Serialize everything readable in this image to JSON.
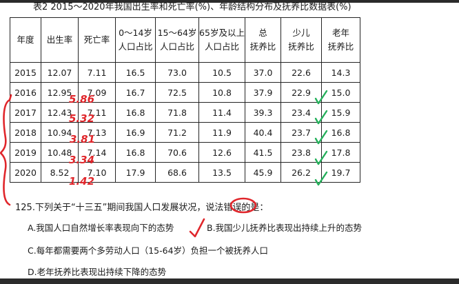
{
  "title": "表2 2015～2020年我国出生率和死亡率(%)、年龄结构分布及抚养比数据表(%)",
  "table": {
    "headers": [
      [
        "年度"
      ],
      [
        "出生率"
      ],
      [
        "死亡率"
      ],
      [
        "0～14岁",
        "人口占比"
      ],
      [
        "15～64岁",
        "人口占比"
      ],
      [
        "65岁及以上",
        "人口占比"
      ],
      [
        "总",
        "抚养比"
      ],
      [
        "少儿",
        "抚养比"
      ],
      [
        "老年",
        "抚养比"
      ]
    ],
    "rows": [
      [
        "2015",
        "12.07",
        "7.11",
        "16.5",
        "73.0",
        "10.5",
        "37.0",
        "22.6",
        "14.3"
      ],
      [
        "2016",
        "12.95",
        "7.09",
        "16.7",
        "72.5",
        "10.8",
        "37.9",
        "22.9",
        "15.0"
      ],
      [
        "2017",
        "12.43",
        "7.11",
        "16.8",
        "71.8",
        "11.4",
        "39.3",
        "23.4",
        "15.9"
      ],
      [
        "2018",
        "10.94",
        "7.13",
        "16.9",
        "71.2",
        "11.9",
        "40.4",
        "23.7",
        "16.8"
      ],
      [
        "2019",
        "10.48",
        "7.14",
        "16.8",
        "70.6",
        "12.6",
        "41.5",
        "23.8",
        "17.8"
      ],
      [
        "2020",
        "8.52",
        "7.10",
        "17.9",
        "68.6",
        "13.5",
        "45.9",
        "26.2",
        "19.7"
      ]
    ]
  },
  "handwritten_annotations": [
    "5.86",
    "5.32",
    "3.81",
    "3.34",
    "1.42"
  ],
  "question": {
    "stem": "125.下列关于“十三五”期间我国人口发展状况，说法错误的是：",
    "options": [
      "A.我国人口自然增长率表现向下的态势",
      "B.我国少儿抚养比表现出持续上升的态势",
      "C.每年都需要两个多劳动人口（15-64岁）负担一个被抚养人口",
      "D.老年抚养比表现出持续下降的态势"
    ]
  },
  "ink_colors": {
    "red": "#e0262b",
    "green": "#23b05a"
  }
}
